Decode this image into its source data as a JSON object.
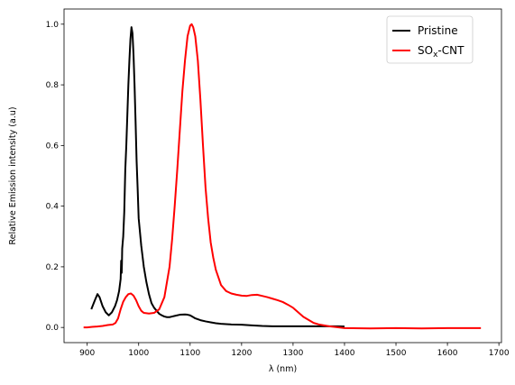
{
  "chart_data": {
    "type": "line",
    "title": "",
    "xlabel": "λ (nm)",
    "ylabel": "Relative Emission intensity (a.u)",
    "xlim": [
      855,
      1705
    ],
    "ylim": [
      -0.05,
      1.05
    ],
    "xticks": [
      900,
      1000,
      1100,
      1200,
      1300,
      1400,
      1500,
      1600,
      1700
    ],
    "yticks": [
      0.0,
      0.2,
      0.4,
      0.6,
      0.8,
      1.0
    ],
    "grid": false,
    "legend_position": "top-right",
    "series": [
      {
        "name": "Pristine",
        "color": "#000000",
        "x": [
          908,
          915,
          920,
          924,
          930,
          936,
          942,
          948,
          954,
          958,
          962,
          965,
          966,
          967,
          967.5,
          968,
          970,
          972,
          974,
          976,
          978,
          980,
          982,
          984,
          986,
          988,
          990,
          992,
          994,
          996,
          998,
          1000,
          1005,
          1010,
          1015,
          1020,
          1025,
          1030,
          1035,
          1040,
          1045,
          1050,
          1055,
          1060,
          1065,
          1070,
          1080,
          1090,
          1095,
          1100,
          1105,
          1110,
          1115,
          1120,
          1130,
          1140,
          1150,
          1160,
          1170,
          1180,
          1200,
          1220,
          1240,
          1260,
          1280,
          1300,
          1320,
          1340,
          1360,
          1380,
          1400
        ],
        "y": [
          0.06,
          0.09,
          0.11,
          0.1,
          0.07,
          0.05,
          0.04,
          0.05,
          0.07,
          0.09,
          0.12,
          0.16,
          0.22,
          0.18,
          0.21,
          0.26,
          0.3,
          0.38,
          0.52,
          0.6,
          0.7,
          0.8,
          0.88,
          0.95,
          0.99,
          0.97,
          0.9,
          0.8,
          0.68,
          0.55,
          0.46,
          0.36,
          0.27,
          0.2,
          0.15,
          0.11,
          0.08,
          0.065,
          0.055,
          0.045,
          0.04,
          0.036,
          0.034,
          0.034,
          0.036,
          0.038,
          0.042,
          0.043,
          0.042,
          0.04,
          0.035,
          0.03,
          0.027,
          0.024,
          0.02,
          0.017,
          0.014,
          0.012,
          0.011,
          0.01,
          0.009,
          0.007,
          0.005,
          0.004,
          0.004,
          0.004,
          0.004,
          0.004,
          0.004,
          0.004,
          0.003
        ]
      },
      {
        "name": "SOx-CNT",
        "color": "#ff0000",
        "x": [
          893,
          900,
          910,
          920,
          930,
          940,
          950,
          955,
          960,
          965,
          970,
          975,
          980,
          985,
          990,
          995,
          1000,
          1005,
          1010,
          1020,
          1030,
          1040,
          1050,
          1060,
          1065,
          1070,
          1075,
          1080,
          1085,
          1090,
          1095,
          1100,
          1103,
          1106,
          1110,
          1115,
          1120,
          1125,
          1130,
          1135,
          1140,
          1145,
          1150,
          1155,
          1160,
          1170,
          1180,
          1190,
          1200,
          1210,
          1220,
          1230,
          1240,
          1250,
          1260,
          1270,
          1280,
          1290,
          1300,
          1310,
          1320,
          1330,
          1340,
          1350,
          1360,
          1370,
          1380,
          1400,
          1450,
          1500,
          1550,
          1600,
          1665
        ],
        "y": [
          0.0,
          0.0,
          0.002,
          0.003,
          0.005,
          0.008,
          0.01,
          0.015,
          0.03,
          0.06,
          0.085,
          0.1,
          0.11,
          0.112,
          0.105,
          0.09,
          0.07,
          0.055,
          0.048,
          0.046,
          0.048,
          0.06,
          0.1,
          0.2,
          0.29,
          0.4,
          0.52,
          0.65,
          0.78,
          0.88,
          0.96,
          0.995,
          1.0,
          0.99,
          0.96,
          0.88,
          0.75,
          0.6,
          0.46,
          0.36,
          0.28,
          0.23,
          0.19,
          0.165,
          0.14,
          0.12,
          0.112,
          0.108,
          0.105,
          0.104,
          0.107,
          0.108,
          0.104,
          0.1,
          0.095,
          0.09,
          0.084,
          0.075,
          0.065,
          0.05,
          0.035,
          0.025,
          0.015,
          0.01,
          0.007,
          0.004,
          0.002,
          -0.002,
          -0.003,
          -0.002,
          -0.003,
          -0.002,
          -0.002
        ]
      }
    ]
  },
  "legend": {
    "pristine_label": "Pristine",
    "sox_base": "SO",
    "sox_sub": "x",
    "sox_rest": "-CNT"
  }
}
